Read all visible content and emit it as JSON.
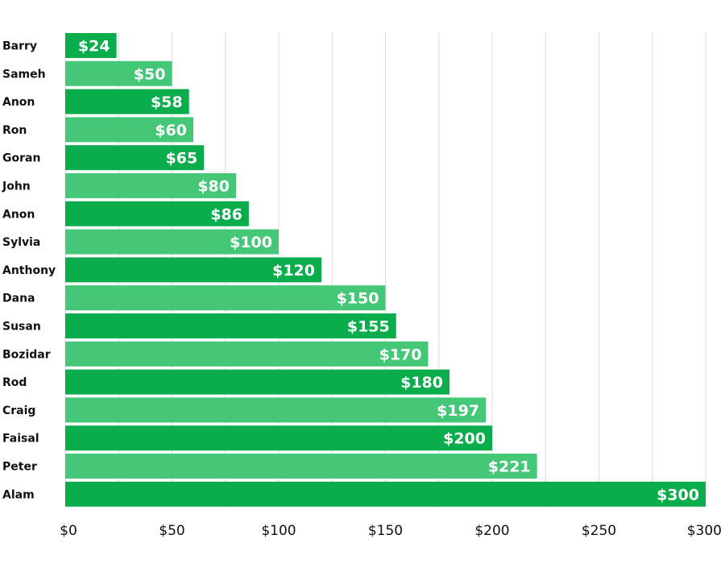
{
  "chart_data": {
    "type": "bar",
    "orientation": "horizontal",
    "title": "",
    "xlabel": "",
    "ylabel": "",
    "categories": [
      "Barry",
      "Sameh",
      "Anon",
      "Ron",
      "Goran",
      "John",
      "Anon",
      "Sylvia",
      "Anthony",
      "Dana",
      "Susan",
      "Bozidar",
      "Rod",
      "Craig",
      "Faisal",
      "Peter",
      "Alam"
    ],
    "values": [
      24,
      50,
      58,
      60,
      65,
      80,
      86,
      100,
      120,
      150,
      155,
      170,
      180,
      197,
      200,
      221,
      300
    ],
    "data_labels": [
      "$24",
      "$50",
      "$58",
      "$60",
      "$65",
      "$80",
      "$86",
      "$100",
      "$120",
      "$150",
      "$155",
      "$170",
      "$180",
      "$197",
      "$200",
      "$221",
      "$300"
    ],
    "xlim": [
      0,
      300
    ],
    "x_ticks": [
      0,
      50,
      100,
      150,
      200,
      250,
      300
    ],
    "x_tick_labels": [
      "$0",
      "$50",
      "$100",
      "$150",
      "$200",
      "$250",
      "$300"
    ],
    "grid": true,
    "legend": "none",
    "colors": {
      "bar_dark": "#0aad4b",
      "bar_light": "#44c878",
      "text_on_bar": "#ffffff",
      "label_text": "#111111",
      "gridline": "#dcdcdc"
    }
  }
}
